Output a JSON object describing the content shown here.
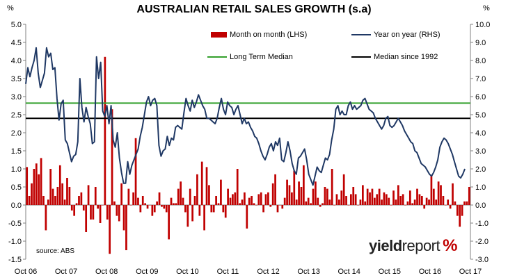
{
  "chart_data": {
    "type": "bar+line",
    "title": "AUSTRALIAN RETAIL SALES GROWTH (s.a)",
    "left_unit": "%",
    "right_unit": "%",
    "source": "source: ABS",
    "logo": {
      "part1": "yield",
      "part2": "report",
      "symbol": "%"
    },
    "x_labels": [
      "Oct 06",
      "Oct 07",
      "Oct 08",
      "Oct 09",
      "Oct 10",
      "Oct 11",
      "Oct 12",
      "Oct 13",
      "Oct 14",
      "Oct 15",
      "Oct 16",
      "Oct 17"
    ],
    "y_left": {
      "min": -1.5,
      "max": 5.0,
      "step": 0.5,
      "ticks": [
        "5.0",
        "4.5",
        "4.0",
        "3.5",
        "3.0",
        "2.5",
        "2.0",
        "1.5",
        "1.0",
        "0.5",
        "0.0",
        "-0.5",
        "-1.0",
        "-1.5"
      ]
    },
    "y_right": {
      "min": -3.0,
      "max": 10.0,
      "step": 1.0,
      "ticks": [
        "10.0",
        "9.0",
        "8.0",
        "7.0",
        "6.0",
        "5.0",
        "4.0",
        "3.0",
        "2.0",
        "1.0",
        "0.0",
        "-1.0",
        "-2.0",
        "-3.0"
      ]
    },
    "series": [
      {
        "name": "Month on month (LHS)",
        "kind": "bar",
        "axis": "left",
        "color": "#c00000",
        "values": [
          1.05,
          0.25,
          0.6,
          1.0,
          1.15,
          0.85,
          1.3,
          0.25,
          -0.7,
          0.15,
          1.0,
          0.45,
          0.25,
          0.5,
          1.1,
          0.6,
          0.15,
          0.75,
          0.5,
          -0.15,
          -0.3,
          0.05,
          0.25,
          0.35,
          -0.15,
          -0.75,
          0.55,
          -0.4,
          -0.4,
          0.5,
          -0.1,
          -0.5,
          0.0,
          4.1,
          -0.4,
          -1.35,
          2.65,
          0.1,
          -0.3,
          -0.45,
          0.6,
          -0.7,
          -1.25,
          0.45,
          0.0,
          0.35,
          1.85,
          0.2,
          -0.2,
          0.25,
          0.05,
          -0.1,
          0.0,
          -0.3,
          -0.2,
          0.1,
          0.35,
          -0.05,
          -0.1,
          -0.2,
          -0.95,
          0.2,
          0.05,
          0.05,
          0.45,
          0.65,
          0.2,
          -0.2,
          -0.6,
          0.45,
          -0.45,
          0.25,
          0.85,
          -0.3,
          1.2,
          -0.7,
          1.05,
          0.55,
          -0.2,
          -0.2,
          0.25,
          0.05,
          0.7,
          -0.2,
          -0.35,
          0.45,
          0.2,
          0.3,
          0.35,
          1.0,
          0.05,
          0.15,
          0.35,
          -0.65,
          0.2,
          0.25,
          0.05,
          0.0,
          0.3,
          0.35,
          -0.2,
          0.3,
          0.35,
          -0.05,
          0.6,
          0.85,
          -0.2,
          0.0,
          -0.1,
          0.2,
          0.7,
          0.55,
          0.35,
          0.95,
          0.15,
          0.65,
          0.5,
          1.1,
          0.1,
          0.2,
          0.05,
          0.45,
          0.65,
          0.2,
          -0.05,
          0.05,
          0.5,
          0.45,
          0.15,
          1.0,
          0.0,
          0.3,
          0.15,
          0.4,
          0.85,
          0.25,
          0.0,
          0.3,
          0.5,
          0.3,
          0.0,
          0.15,
          0.55,
          0.1,
          0.45,
          0.35,
          0.45,
          0.2,
          0.3,
          0.45,
          0.15,
          0.35,
          0.3,
          0.2,
          0.0,
          0.4,
          0.15,
          0.55,
          0.25,
          0.3,
          0.0,
          0.1,
          0.4,
          0.05,
          0.15,
          0.45,
          0.3,
          0.25,
          -0.1,
          0.2,
          0.15,
          0.8,
          0.45,
          0.15,
          0.65,
          0.55,
          0.25,
          0.0,
          0.15,
          -0.1,
          0.6,
          0.1,
          -0.3,
          -0.6,
          -0.3,
          0.1,
          0.1,
          0.5
        ]
      },
      {
        "name": "Year on year (RHS)",
        "kind": "line",
        "axis": "right",
        "color": "#1f3864",
        "values": [
          6.7,
          7.6,
          7.1,
          7.6,
          8.0,
          8.7,
          7.3,
          6.5,
          6.9,
          7.3,
          8.7,
          8.2,
          8.4,
          7.5,
          7.6,
          5.9,
          4.7,
          5.6,
          5.8,
          3.6,
          3.4,
          2.9,
          2.4,
          2.7,
          2.8,
          3.5,
          7.0,
          5.4,
          4.6,
          5.4,
          4.9,
          4.5,
          3.4,
          3.5,
          8.2,
          7.0,
          7.9,
          5.2,
          4.9,
          5.5,
          4.5,
          5.5,
          3.6,
          3.2,
          4.0,
          2.6,
          1.8,
          1.2,
          1.2,
          2.4,
          1.7,
          2.2,
          2.5,
          2.8,
          3.1,
          3.8,
          4.3,
          5.0,
          5.7,
          6.0,
          5.5,
          5.8,
          5.9,
          5.5,
          3.3,
          2.7,
          3.0,
          3.1,
          3.8,
          3.3,
          3.7,
          3.6,
          4.3,
          4.4,
          4.3,
          4.2,
          5.1,
          5.9,
          5.5,
          5.2,
          5.8,
          5.4,
          5.7,
          6.1,
          5.8,
          5.5,
          5.3,
          4.8,
          4.8,
          4.7,
          4.6,
          4.5,
          4.8,
          5.4,
          5.9,
          5.3,
          5.0,
          5.7,
          5.5,
          5.4,
          5.0,
          5.3,
          5.5,
          5.0,
          4.5,
          4.8,
          4.5,
          4.6,
          4.3,
          4.1,
          3.8,
          3.7,
          3.4,
          3.0,
          2.7,
          2.5,
          2.8,
          3.2,
          3.4,
          3.0,
          3.5,
          3.3,
          3.7,
          2.5,
          2.4,
          2.9,
          3.5,
          3.0,
          2.3,
          1.9,
          1.7,
          2.6,
          2.7,
          2.9,
          3.1,
          2.5,
          1.7,
          1.4,
          1.1,
          1.6,
          2.1,
          1.9,
          1.8,
          2.2,
          2.6,
          2.5,
          2.8,
          3.6,
          4.2,
          5.3,
          5.5,
          5.0,
          5.2,
          5.0,
          5.0,
          5.5,
          5.7,
          5.3,
          5.5,
          5.3,
          5.4,
          5.5,
          5.8,
          5.9,
          5.6,
          5.3,
          5.2,
          5.1,
          4.8,
          4.6,
          4.4,
          4.2,
          4.4,
          4.8,
          4.9,
          4.4,
          4.3,
          4.4,
          4.6,
          4.8,
          4.6,
          4.4,
          4.1,
          3.9,
          3.7,
          3.5,
          3.4,
          3.0,
          2.9,
          2.6,
          2.3,
          2.2,
          2.1,
          1.9,
          1.7,
          1.6,
          1.8,
          2.1,
          2.5,
          3.2,
          3.5,
          3.7,
          3.6,
          3.4,
          3.1,
          2.8,
          2.4,
          2.0,
          1.6,
          1.5,
          1.7,
          2.0
        ]
      },
      {
        "name": "Long Term Median",
        "kind": "hline",
        "axis": "left",
        "color": "#33a02c",
        "value": 2.82
      },
      {
        "name": "Median since 1992",
        "kind": "hline",
        "axis": "left",
        "color": "#000000",
        "value": 2.4
      }
    ],
    "legend": [
      "Month on month (LHS)",
      "Year on year (RHS)",
      "Long Term Median",
      "Median since 1992"
    ],
    "legend_placement": "top",
    "grid": false
  }
}
